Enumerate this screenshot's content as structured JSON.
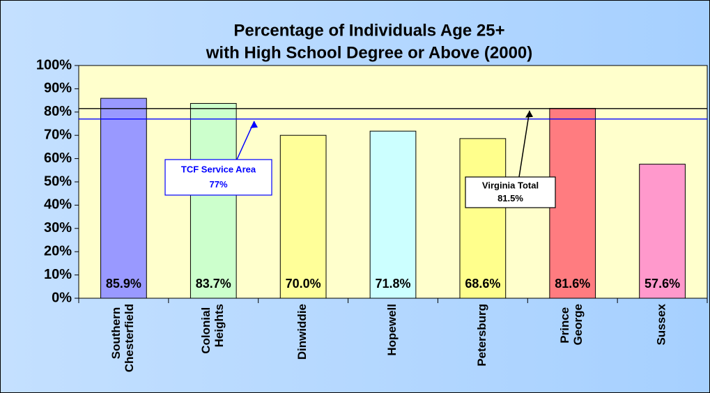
{
  "chart_data": {
    "type": "bar",
    "title": [
      "Percentage of Individuals Age 25+",
      "with High School Degree or Above (2000)"
    ],
    "categories": [
      "Southern Chesterfield",
      "Colonial Heights",
      "Dinwiddie",
      "Hopewell",
      "Petersburg",
      "Prince George",
      "Sussex"
    ],
    "values": [
      85.9,
      83.7,
      70.0,
      71.8,
      68.6,
      81.6,
      57.6
    ],
    "value_labels": [
      "85.9%",
      "83.7%",
      "70.0%",
      "71.8%",
      "68.6%",
      "81.6%",
      "57.6%"
    ],
    "colors": [
      "#9999ff",
      "#ccffcc",
      "#ffff99",
      "#ccffff",
      "#ffff8c",
      "#ff7c80",
      "#ff99cc"
    ],
    "ylim": [
      0,
      100
    ],
    "yticks": [
      {
        "value": 0,
        "label": "0%"
      },
      {
        "value": 10,
        "label": "10%"
      },
      {
        "value": 20,
        "label": "20%"
      },
      {
        "value": 30,
        "label": "30%"
      },
      {
        "value": 40,
        "label": "40%"
      },
      {
        "value": 50,
        "label": "50%"
      },
      {
        "value": 60,
        "label": "60%"
      },
      {
        "value": 70,
        "label": "70%"
      },
      {
        "value": 80,
        "label": "80%"
      },
      {
        "value": 90,
        "label": "90%"
      },
      {
        "value": 100,
        "label": "100%"
      }
    ],
    "reference_lines": [
      {
        "name": "TCF Service Area",
        "value": 77,
        "value_label": "77%",
        "color": "#0000ff"
      },
      {
        "name": "Virginia Total",
        "value": 81.5,
        "value_label": "81.5%",
        "color": "#000000"
      }
    ]
  }
}
